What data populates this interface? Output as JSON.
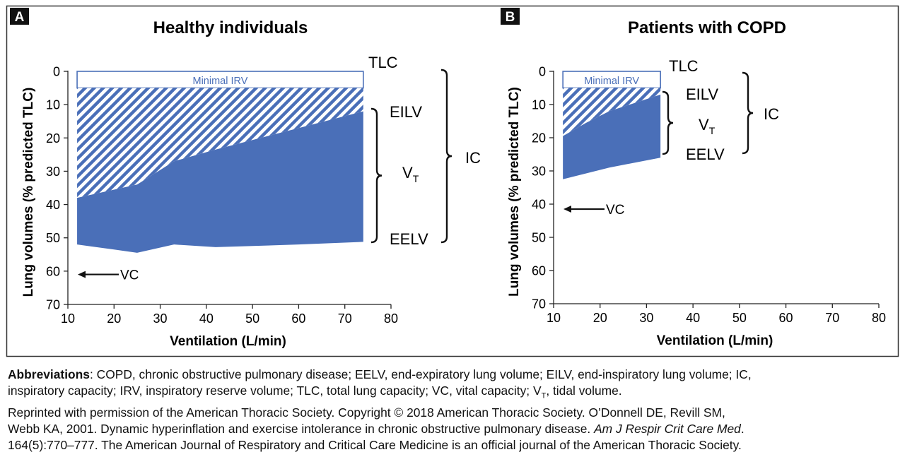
{
  "chart_data": [
    {
      "type": "area",
      "panel_label": "A",
      "title": "Healthy individuals",
      "xlabel": "Ventilation (L/min)",
      "ylabel": "Lung volumes (% predicted TLC)",
      "xlim": [
        10,
        80
      ],
      "ylim": [
        0,
        70
      ],
      "y_inverted": true,
      "xticks": [
        10,
        20,
        30,
        40,
        50,
        60,
        70,
        80
      ],
      "yticks": [
        0,
        10,
        20,
        30,
        40,
        50,
        60,
        70
      ],
      "irv_label": "Minimal IRV",
      "minimal_irv_bottom": 5,
      "x_start": 12,
      "x_end": 74,
      "eilv_line": [
        [
          12,
          38
        ],
        [
          25,
          34
        ],
        [
          33,
          27
        ],
        [
          42,
          23.5
        ],
        [
          74,
          12
        ]
      ],
      "eelv_line": [
        [
          12,
          52
        ],
        [
          20,
          53.5
        ],
        [
          25,
          54.5
        ],
        [
          33,
          52
        ],
        [
          42,
          52.8
        ],
        [
          60,
          52
        ],
        [
          74,
          51.2
        ]
      ],
      "vc_value": 61,
      "labels": {
        "tlc": "TLC",
        "eilv": "EILV",
        "vt_main": "V",
        "vt_sub": "T",
        "eelv": "EELV",
        "ic": "IC",
        "vc": "VC"
      }
    },
    {
      "type": "area",
      "panel_label": "B",
      "title": "Patients with COPD",
      "xlabel": "Ventilation (L/min)",
      "ylabel": "Lung volumes (% predicted TLC)",
      "xlim": [
        10,
        80
      ],
      "ylim": [
        0,
        70
      ],
      "y_inverted": true,
      "xticks": [
        10,
        20,
        30,
        40,
        50,
        60,
        70,
        80
      ],
      "yticks": [
        0,
        10,
        20,
        30,
        40,
        50,
        60,
        70
      ],
      "irv_label": "Minimal IRV",
      "minimal_irv_bottom": 5,
      "x_start": 12,
      "x_end": 33,
      "eilv_line": [
        [
          12,
          19.5
        ],
        [
          17,
          15.5
        ],
        [
          22,
          12
        ],
        [
          33,
          7
        ]
      ],
      "eelv_line": [
        [
          12,
          32.5
        ],
        [
          22,
          29
        ],
        [
          33,
          26
        ]
      ],
      "vc_value": 41.5,
      "labels": {
        "tlc": "TLC",
        "eilv": "EILV",
        "vt_main": "V",
        "vt_sub": "T",
        "eelv": "EELV",
        "ic": "IC",
        "vc": "VC"
      }
    }
  ],
  "colors": {
    "fill": "#4a6fb8",
    "irv_stroke": "#4a6fb8",
    "frame": "#333333"
  },
  "caption": {
    "abbrev_label": "Abbreviations",
    "abbrev_text_1": ": COPD, chronic obstructive pulmonary disease; EELV, end-expiratory lung volume; EILV, end-inspiratory lung volume; IC,",
    "abbrev_text_2": "inspiratory capacity; IRV, inspiratory reserve volume; TLC, total lung capacity; VC, vital capacity; V",
    "abbrev_sub": "T",
    "abbrev_text_3": ", tidal volume.",
    "reprint_1": "Reprinted with permission of the American Thoracic Society. Copyright © 2018 American Thoracic Society. O’Donnell DE, Revill SM,",
    "reprint_2": "Webb KA, 2001. Dynamic hyperinflation and exercise intolerance in chronic obstructive pulmonary disease. ",
    "reprint_2_italic": "Am J Respir Crit Care Med",
    "reprint_2_end": ".",
    "reprint_3": "164(5):770–777. The American Journal of Respiratory and Critical Care Medicine is an official journal of the American Thoracic Society."
  }
}
